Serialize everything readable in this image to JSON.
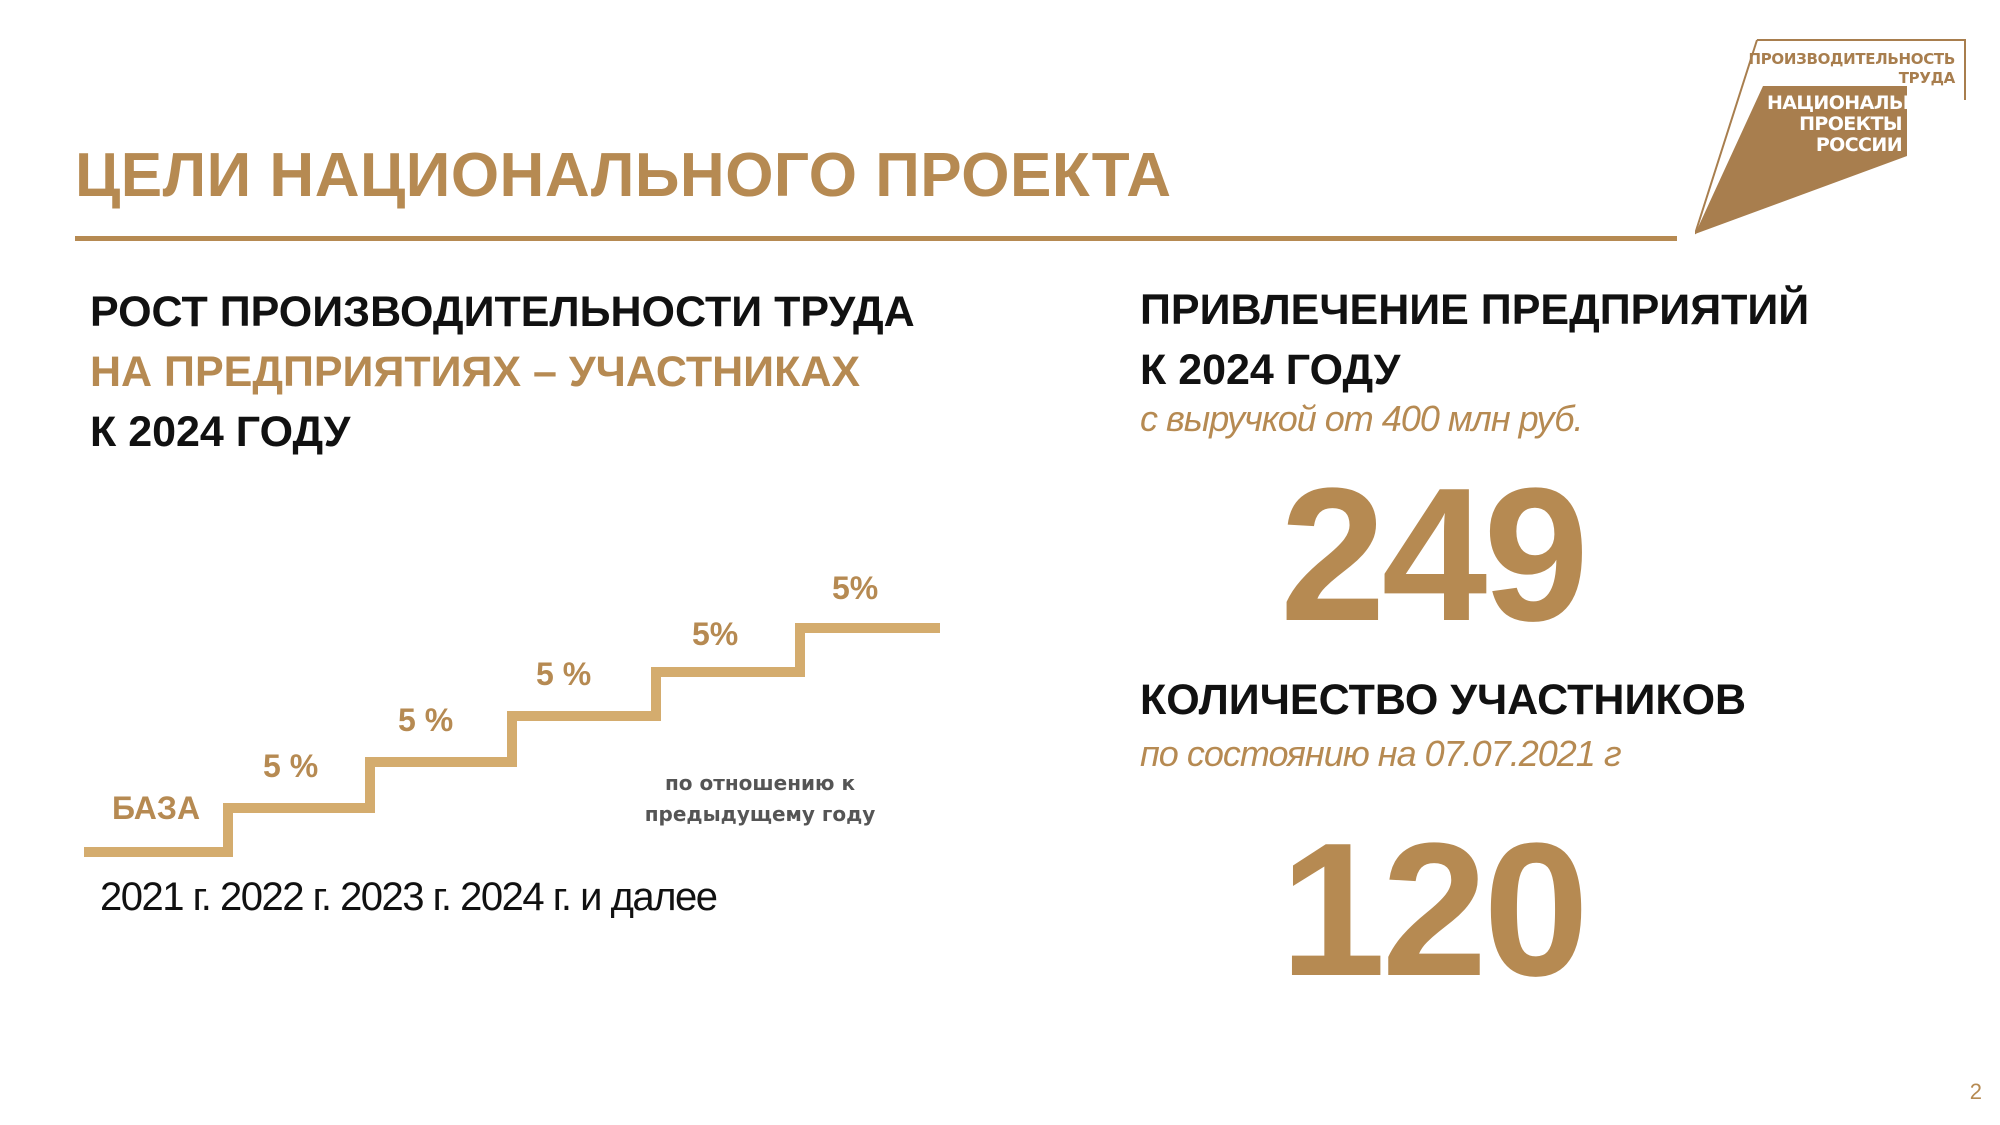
{
  "title": "ЦЕЛИ НАЦИОНАЛЬНОГО ПРОЕКТА",
  "logo": {
    "top_line1": "ПРОИЗВОДИТЕЛЬНОСТЬ",
    "top_line2": "ТРУДА",
    "main_line1": "НАЦИОНАЛЬНЫЕ",
    "main_line2": "ПРОЕКТЫ",
    "main_line3": "РОССИИ"
  },
  "left": {
    "line1": "РОСТ ПРОИЗВОДИТЕЛЬНОСТИ ТРУДА",
    "line2": "НА ПРЕДПРИЯТИЯХ – УЧАСТНИКАХ",
    "line3": "К 2024 ГОДУ",
    "steps": [
      "БАЗА",
      "5 %",
      "5 %",
      "5 %",
      "5%",
      "5%"
    ],
    "note_line1": "по отношению к",
    "note_line2": "предыдущему году",
    "years": "2021 г. 2022 г. 2023 г. 2024 г. и далее"
  },
  "right": {
    "head1_line1": "ПРИВЛЕЧЕНИЕ ПРЕДПРИЯТИЙ",
    "head1_line2": "К 2024 ГОДУ",
    "sub1": "с выручкой от 400 млн руб.",
    "num1": "249",
    "head2": "КОЛИЧЕСТВО УЧАСТНИКОВ",
    "sub2": "по состоянию на 07.07.2021 г",
    "num2": "120"
  },
  "page_number": "2",
  "colors": {
    "accent": "#B68A52",
    "stairs": "#D4AC6E",
    "text": "#111111"
  }
}
